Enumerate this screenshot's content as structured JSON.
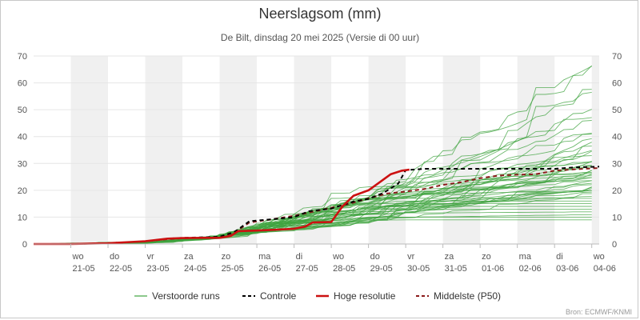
{
  "header": {
    "title": "Neerslagsom (mm)",
    "subtitle": "De Bilt, dinsdag 20 mei 2025 (Versie di 00 uur)"
  },
  "legend": {
    "ensemble": "Verstoorde runs",
    "control": "Controle",
    "hires": "Hoge resolutie",
    "median": "Middelste (P50)"
  },
  "source": "Bron: ECMWF/KNMI",
  "colors": {
    "ensemble": "#3fa33f",
    "control": "#000000",
    "hires": "#cc1111",
    "median": "#8b1a1a",
    "weekend_band": "#f0f0f0",
    "grid": "#e6e6e6",
    "axis_text": "#555555"
  },
  "chart_data": {
    "type": "line",
    "title": "Neerslagsom (mm)",
    "subtitle": "De Bilt, dinsdag 20 mei 2025 (Versie di 00 uur)",
    "xlim": [
      0,
      15.2
    ],
    "ylim": [
      0,
      70
    ],
    "y_ticks": [
      0,
      10,
      20,
      30,
      40,
      50,
      60,
      70
    ],
    "y_tick_labels": [
      "0",
      "10",
      "20",
      "30",
      "40",
      "50",
      "60",
      "70"
    ],
    "x_ticks": [
      {
        "day": "wo",
        "date": "21-05",
        "x": 1
      },
      {
        "day": "do",
        "date": "22-05",
        "x": 2
      },
      {
        "day": "vr",
        "date": "23-05",
        "x": 3
      },
      {
        "day": "za",
        "date": "24-05",
        "x": 4
      },
      {
        "day": "zo",
        "date": "25-05",
        "x": 5
      },
      {
        "day": "ma",
        "date": "26-05",
        "x": 6
      },
      {
        "day": "di",
        "date": "27-05",
        "x": 7
      },
      {
        "day": "wo",
        "date": "28-05",
        "x": 8
      },
      {
        "day": "do",
        "date": "29-05",
        "x": 9
      },
      {
        "day": "vr",
        "date": "30-05",
        "x": 10
      },
      {
        "day": "za",
        "date": "31-05",
        "x": 11
      },
      {
        "day": "zo",
        "date": "01-06",
        "x": 12
      },
      {
        "day": "ma",
        "date": "02-06",
        "x": 13
      },
      {
        "day": "di",
        "date": "03-06",
        "x": 14
      },
      {
        "day": "wo",
        "date": "04-06",
        "x": 15
      }
    ],
    "shaded_days": [
      [
        1,
        2
      ],
      [
        3,
        4
      ],
      [
        5,
        6
      ],
      [
        7,
        8
      ],
      [
        9,
        10
      ],
      [
        11,
        12
      ],
      [
        13,
        14
      ],
      [
        15,
        15.2
      ]
    ],
    "grid": true,
    "legend_position": "bottom",
    "ensemble_finals": [
      68,
      67,
      60,
      59,
      52,
      50,
      47,
      44,
      42,
      40,
      39,
      38,
      36,
      35,
      34,
      33,
      32,
      31,
      30,
      30,
      29,
      28,
      28,
      27,
      27,
      26,
      26,
      25,
      25,
      24,
      24,
      23,
      23,
      22,
      22,
      21,
      21,
      20,
      20,
      19,
      18,
      17,
      16,
      15,
      14,
      13,
      12,
      11,
      10,
      9
    ],
    "series": [
      {
        "name": "Controle",
        "x": [
          0,
          1,
          2,
          3,
          3.6,
          4,
          4.6,
          5,
          5.4,
          5.8,
          6.4,
          7,
          7.4,
          8,
          8.6,
          9,
          9.4,
          9.8,
          10,
          10.5,
          11,
          12,
          13,
          14,
          14.5,
          15.2
        ],
        "y": [
          0,
          0,
          0.3,
          1.0,
          2.0,
          2.3,
          2.5,
          2.7,
          4.5,
          8.5,
          9.2,
          10.0,
          12.2,
          13.2,
          15.8,
          16.8,
          19.0,
          22.5,
          27.5,
          28.0,
          28.0,
          28.0,
          28.0,
          28.0,
          28.5,
          28.8
        ]
      },
      {
        "name": "Hoge resolutie",
        "x": [
          0,
          1,
          2,
          3,
          3.6,
          4,
          4.6,
          5,
          5.3,
          5.5,
          6,
          6.5,
          7,
          7.3,
          7.5,
          8,
          8.3,
          8.6,
          9,
          9.3,
          9.6,
          9.9,
          10.1
        ],
        "y": [
          0,
          0,
          0.3,
          1.0,
          2.0,
          2.2,
          2.3,
          2.3,
          3.0,
          4.8,
          5.0,
          5.3,
          5.7,
          6.5,
          8.0,
          8.2,
          14.0,
          18.0,
          20.0,
          23.0,
          26.0,
          27.3,
          27.7
        ]
      },
      {
        "name": "Middelste (P50)",
        "x": [
          0,
          1,
          2,
          3,
          3.6,
          4,
          4.6,
          5,
          5.4,
          5.8,
          6.4,
          7,
          7.5,
          8,
          8.5,
          9,
          9.5,
          10,
          10.5,
          11,
          11.5,
          12,
          12.5,
          13,
          13.5,
          14,
          14.5,
          15.2
        ],
        "y": [
          0,
          0,
          0.3,
          1.0,
          1.8,
          2.1,
          2.3,
          2.5,
          4.3,
          8.0,
          9.2,
          10.5,
          12.0,
          13.5,
          15.0,
          17.0,
          18.8,
          19.5,
          20.5,
          22.0,
          23.0,
          24.5,
          25.5,
          25.8,
          26.0,
          27.3,
          27.8,
          28.3
        ]
      }
    ]
  }
}
